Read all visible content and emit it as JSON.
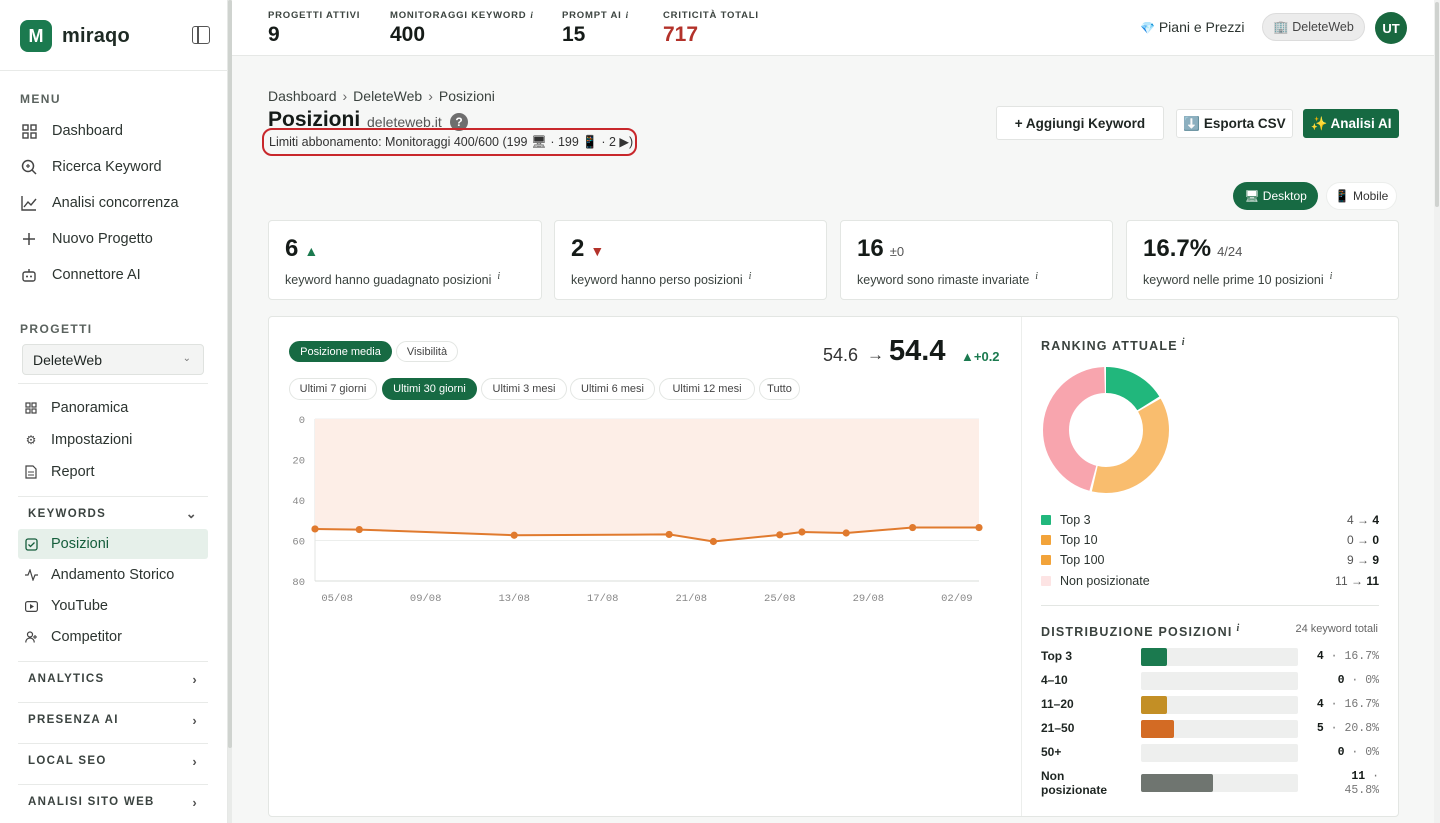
{
  "app": {
    "name": "miraqo",
    "logo_letter": "M"
  },
  "sidebar": {
    "menu_label": "MENU",
    "menu": [
      {
        "label": "Dashboard",
        "icon": "grid-icon"
      },
      {
        "label": "Ricerca Keyword",
        "icon": "search-icon"
      },
      {
        "label": "Analisi concorrenza",
        "icon": "line-chart-icon"
      },
      {
        "label": "Nuovo Progetto",
        "icon": "plus-icon"
      },
      {
        "label": "Connettore AI",
        "icon": "robot-icon"
      }
    ],
    "projects_label": "PROGETTI",
    "project_selected": "DeleteWeb",
    "project_items": [
      {
        "label": "Panoramica",
        "icon": "grid-icon"
      },
      {
        "label": "Impostazioni",
        "icon": "gear-icon"
      },
      {
        "label": "Report",
        "icon": "document-icon"
      }
    ],
    "groups": {
      "keywords": "KEYWORDS",
      "analytics": "ANALYTICS",
      "presenza_ai": "PRESENZA AI",
      "local_seo": "LOCAL SEO",
      "analisi_sito": "ANALISI SITO WEB"
    },
    "keyword_items": [
      {
        "label": "Posizioni",
        "icon": "check-square-icon",
        "active": true
      },
      {
        "label": "Andamento Storico",
        "icon": "activity-icon"
      },
      {
        "label": "YouTube",
        "icon": "youtube-icon"
      },
      {
        "label": "Competitor",
        "icon": "users-icon"
      }
    ]
  },
  "topbar": {
    "stats": [
      {
        "label": "PROGETTI ATTIVI",
        "value": "9",
        "info": ""
      },
      {
        "label": "MONITORAGGI KEYWORD",
        "value": "400",
        "info": "i"
      },
      {
        "label": "PROMPT AI",
        "value": "15",
        "info": "i"
      },
      {
        "label": "CRITICITÀ TOTALI",
        "value": "717",
        "info": ""
      }
    ],
    "plans": "Piani e Prezzi",
    "plans_icon": "💎",
    "account": "🏢 DeleteWeb",
    "avatar": "UT"
  },
  "page": {
    "breadcrumb": [
      "Dashboard",
      "DeleteWeb",
      "Posizioni"
    ],
    "breadcrumb_sep": "›",
    "title": "Posizioni",
    "domain": "deleteweb.it",
    "help": "?",
    "limits": "Limiti abbonamento: Monitoraggi 400/600 (199 🖥 · 199 📱 · 2 ▶)",
    "actions": {
      "add": "+ Aggiungi Keyword",
      "export": "⬇️ Esporta CSV",
      "ai": "✨ Analisi AI"
    },
    "device": {
      "desktop": "🖥 Desktop",
      "mobile": "📱 Mobile",
      "selected": "desktop"
    }
  },
  "kpis": [
    {
      "value": "6",
      "suffix": "▲",
      "trend": "up",
      "desc": "keyword hanno guadagnato posizioni",
      "info": "i"
    },
    {
      "value": "2",
      "suffix": "▼",
      "trend": "down",
      "desc": "keyword hanno perso posizioni",
      "info": "i"
    },
    {
      "value": "16",
      "suffix": "±0",
      "trend": "flat",
      "desc": "keyword sono rimaste invariate",
      "info": "i"
    },
    {
      "value": "16.7%",
      "suffix": "4/24",
      "trend": "flat",
      "desc": "keyword nelle prime 10 posizioni",
      "info": "i"
    }
  ],
  "chart_panel": {
    "tabs": [
      "Posizione media",
      "Visibilità"
    ],
    "active_tab": 0,
    "ranges": [
      "Ultimi 7 giorni",
      "Ultimi 30 giorni",
      "Ultimi 3 mesi",
      "Ultimi 6 mesi",
      "Ultimi 12 mesi",
      "Tutto"
    ],
    "active_range": 1,
    "avg_from": "54.6",
    "avg_arrow": "→",
    "avg_to": "54.4",
    "avg_delta": "▲+0.2"
  },
  "chart_data": {
    "type": "line",
    "x": [
      "05/08",
      "09/08",
      "13/08",
      "17/08",
      "21/08",
      "25/08",
      "29/08",
      "02/09"
    ],
    "series": [
      {
        "values": [
          {
            "x": "04/08",
            "y": 54.3
          },
          {
            "x": "06/08",
            "y": 54.6
          },
          {
            "x": "13/08",
            "y": 57.4
          },
          {
            "x": "20/08",
            "y": 57.0
          },
          {
            "x": "22/08",
            "y": 60.5
          },
          {
            "x": "25/08",
            "y": 57.2
          },
          {
            "x": "26/08",
            "y": 55.8
          },
          {
            "x": "28/08",
            "y": 56.3
          },
          {
            "x": "31/08",
            "y": 53.6
          },
          {
            "x": "03/09",
            "y": 53.6
          }
        ]
      }
    ],
    "y_ticks": [
      0,
      20,
      40,
      60,
      80
    ],
    "ylim": [
      0,
      80
    ],
    "y_inverted": true,
    "colors": {
      "line": "#e07a2e",
      "area": "#fdeee7"
    }
  },
  "ranking": {
    "title": "RANKING ATTUALE",
    "info": "i",
    "legend": [
      {
        "label": "Top 3",
        "from": "4",
        "to": "4",
        "color": "#21b77c"
      },
      {
        "label": "Top 10",
        "from": "0",
        "to": "0",
        "color": "#f2a33a"
      },
      {
        "label": "Top 100",
        "from": "9",
        "to": "9",
        "color": "#f2a33a"
      },
      {
        "label": "Non posizionate",
        "from": "11",
        "to": "11",
        "color": "#fde4e4"
      }
    ],
    "arrow": "→",
    "donut": [
      {
        "label": "Top 3",
        "value": 4,
        "color": "#21b77c"
      },
      {
        "label": "Top 100",
        "value": 9,
        "color": "#f9bd6e"
      },
      {
        "label": "Non posizionate",
        "value": 11,
        "color": "#f8a5ae"
      }
    ]
  },
  "distribution": {
    "title": "DISTRIBUZIONE POSIZIONI",
    "info": "i",
    "total": "24 keyword totali",
    "rows": [
      {
        "label": "Top 3",
        "count": "4",
        "pct": "16.7%",
        "share": 0.167,
        "color": "#1b7a4f"
      },
      {
        "label": "4–10",
        "count": "0",
        "pct": "0%",
        "share": 0,
        "color": "#1b7a4f"
      },
      {
        "label": "11–20",
        "count": "4",
        "pct": "16.7%",
        "share": 0.167,
        "color": "#c38f25"
      },
      {
        "label": "21–50",
        "count": "5",
        "pct": "20.8%",
        "share": 0.208,
        "color": "#d36b24"
      },
      {
        "label": "50+",
        "count": "0",
        "pct": "0%",
        "share": 0,
        "color": "#888"
      },
      {
        "label": "Non posizionate",
        "count": "11",
        "pct": "45.8%",
        "share": 0.458,
        "color": "#6f7570"
      }
    ],
    "dot": "·"
  }
}
